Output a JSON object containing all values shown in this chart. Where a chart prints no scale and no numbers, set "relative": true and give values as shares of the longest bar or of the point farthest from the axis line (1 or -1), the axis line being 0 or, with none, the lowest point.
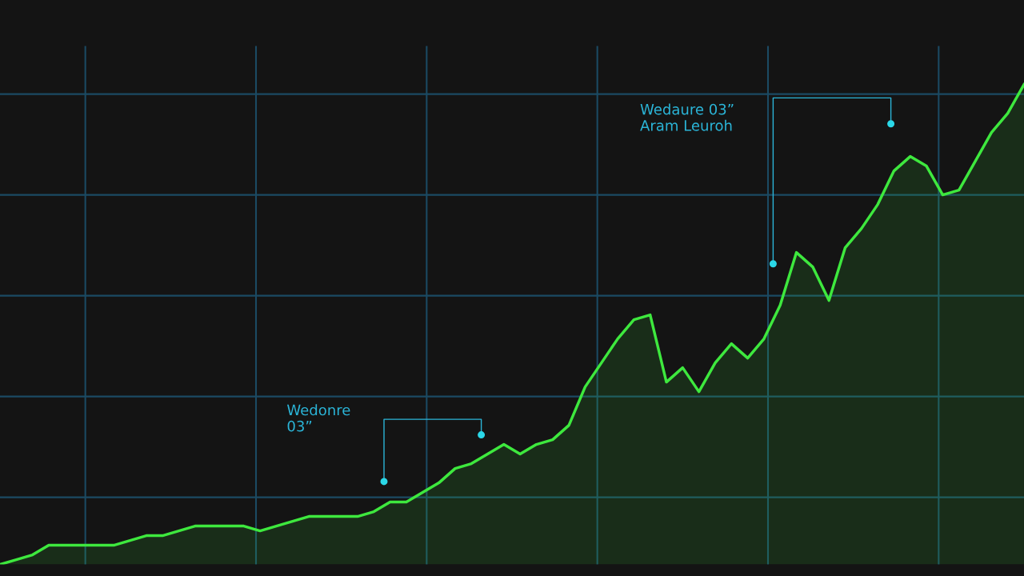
{
  "chart_data": {
    "type": "area",
    "relative": true,
    "grid": true,
    "categories": [
      null,
      null,
      null,
      null,
      null,
      null,
      null,
      null,
      null,
      null,
      null,
      null,
      null,
      null,
      null,
      null,
      null,
      null,
      null,
      null,
      null,
      null,
      null,
      null,
      null,
      null,
      null,
      null,
      null,
      null,
      null,
      null,
      null,
      null,
      null,
      null,
      null,
      null,
      null,
      null,
      null,
      null,
      null,
      null,
      null,
      null,
      null,
      null,
      null,
      null,
      null,
      null,
      null,
      null,
      null,
      null,
      null,
      null,
      null,
      null,
      null,
      null,
      null,
      null
    ],
    "series": [
      {
        "color": "#3ee83e",
        "values": [
          0,
          0.01,
          0.02,
          0.04,
          0.04,
          0.04,
          0.04,
          0.04,
          0.05,
          0.06,
          0.06,
          0.07,
          0.08,
          0.08,
          0.08,
          0.08,
          0.07,
          0.08,
          0.09,
          0.1,
          0.1,
          0.1,
          0.1,
          0.11,
          0.13,
          0.13,
          0.15,
          0.17,
          0.2,
          0.21,
          0.23,
          0.25,
          0.23,
          0.25,
          0.26,
          0.29,
          0.37,
          0.42,
          0.47,
          0.51,
          0.52,
          0.38,
          0.41,
          0.36,
          0.42,
          0.46,
          0.43,
          0.47,
          0.54,
          0.65,
          0.62,
          0.55,
          0.66,
          0.7,
          0.75,
          0.82,
          0.85,
          0.83,
          0.77,
          0.78,
          0.84,
          0.9,
          0.94,
          1.0
        ]
      }
    ],
    "annotations": [
      "Wedonre\n03”",
      "Wedaure 03”\nAram Leuroh"
    ]
  }
}
